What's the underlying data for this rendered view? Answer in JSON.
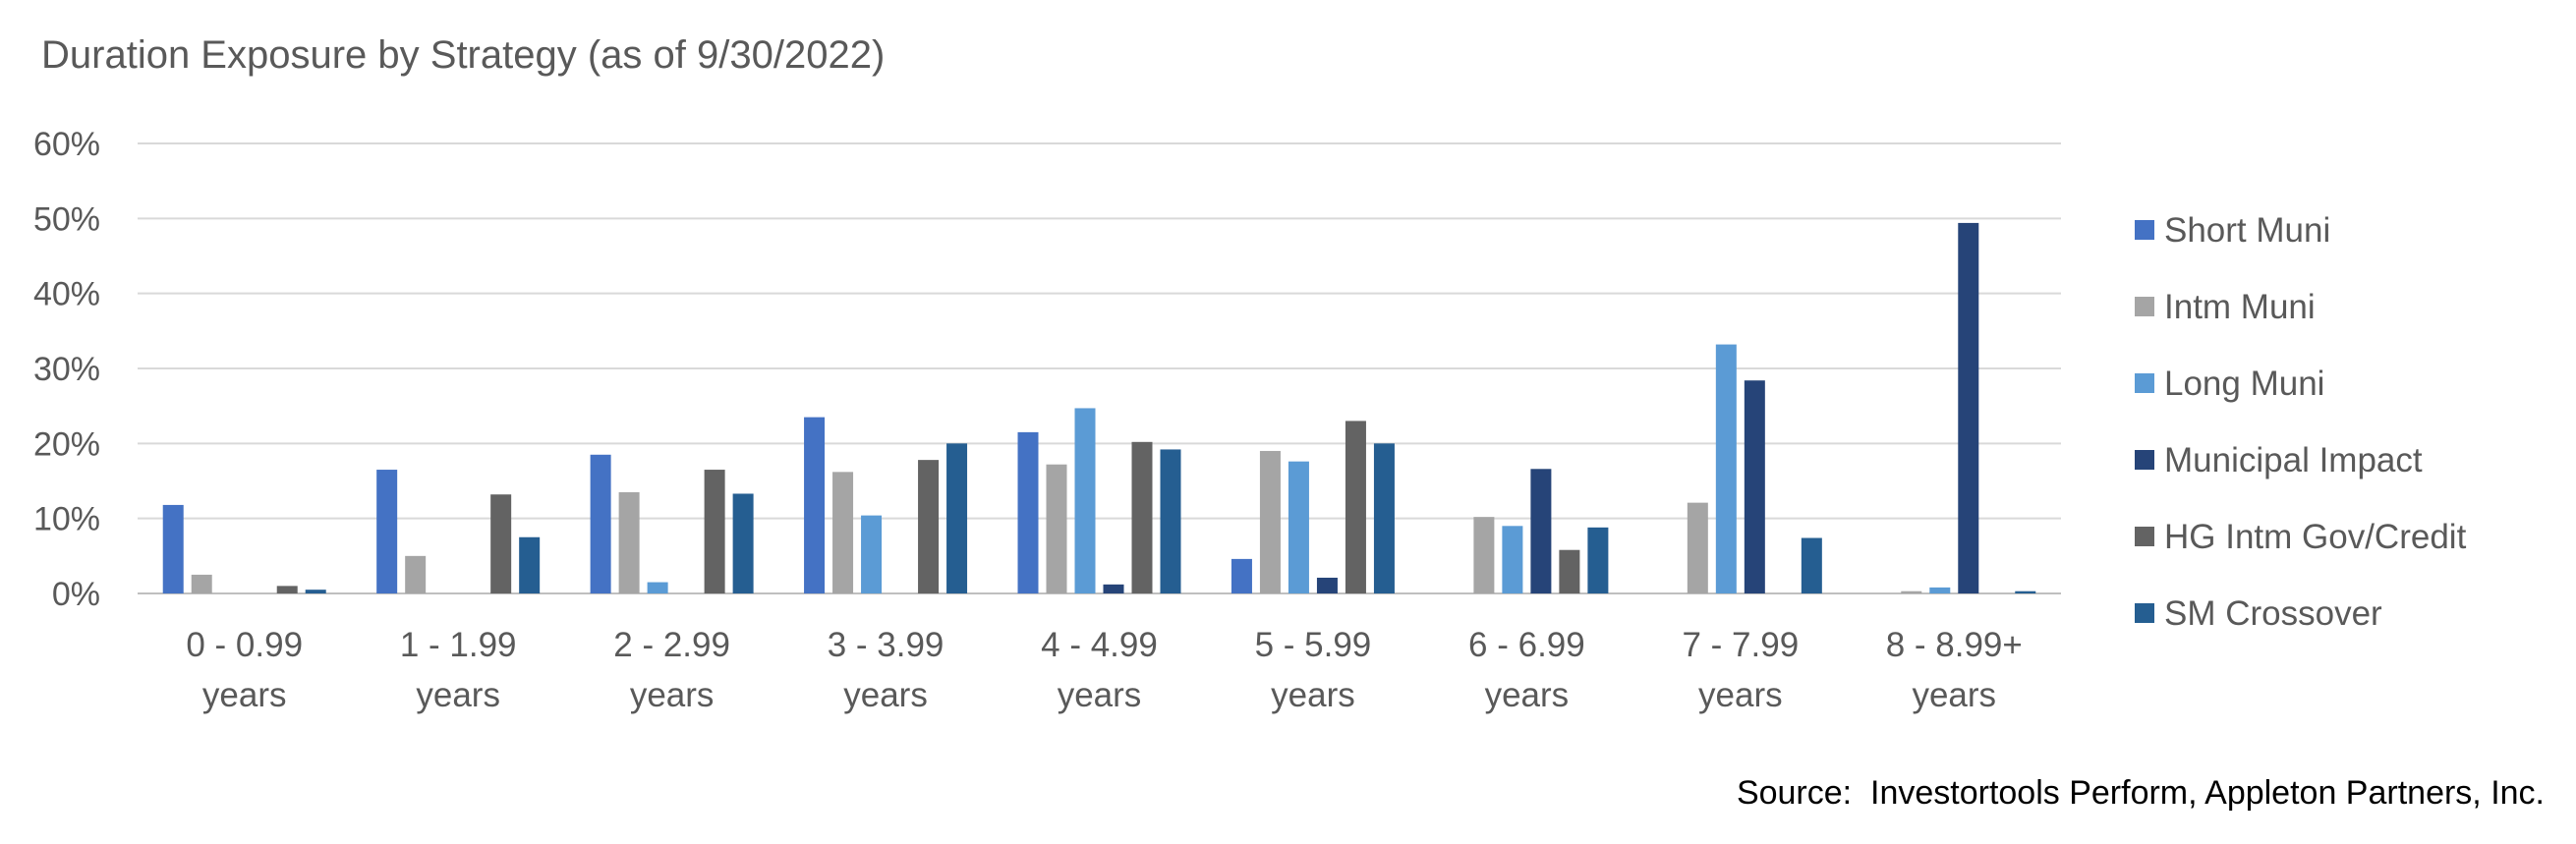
{
  "title": "Duration Exposure by Strategy (as of 9/30/2022)",
  "source": "Source:  Investortools Perform, Appleton Partners, Inc.",
  "chart_data": {
    "type": "bar",
    "title": "Duration Exposure by Strategy (as of 9/30/2022)",
    "xlabel": "",
    "ylabel": "",
    "ylim": [
      0,
      60
    ],
    "yticks": [
      "0%",
      "10%",
      "20%",
      "30%",
      "40%",
      "50%",
      "60%"
    ],
    "grid": true,
    "legend_position": "right",
    "categories": [
      [
        "0 - 0.99",
        "years"
      ],
      [
        "1 - 1.99",
        "years"
      ],
      [
        "2 - 2.99",
        "years"
      ],
      [
        "3 - 3.99",
        "years"
      ],
      [
        "4 - 4.99",
        "years"
      ],
      [
        "5 - 5.99",
        "years"
      ],
      [
        "6 - 6.99",
        "years"
      ],
      [
        "7 - 7.99",
        "years"
      ],
      [
        "8 - 8.99+",
        "years"
      ]
    ],
    "series": [
      {
        "name": "Short Muni",
        "color": "#4472C4",
        "values": [
          11.8,
          16.5,
          18.5,
          23.5,
          21.5,
          4.6,
          0,
          0,
          0
        ]
      },
      {
        "name": "Intm Muni",
        "color": "#A5A5A5",
        "values": [
          2.5,
          5.0,
          13.5,
          16.2,
          17.2,
          19.0,
          10.2,
          12.1,
          0.3
        ]
      },
      {
        "name": "Long Muni",
        "color": "#5B9BD5",
        "values": [
          0,
          0,
          1.5,
          10.4,
          24.7,
          17.6,
          9.0,
          33.2,
          0.8
        ]
      },
      {
        "name": "Municipal Impact",
        "color": "#264478",
        "values": [
          0,
          0,
          0,
          0,
          1.2,
          2.1,
          16.6,
          28.4,
          49.4
        ]
      },
      {
        "name": "HG Intm Gov/Credit",
        "color": "#636363",
        "values": [
          1.0,
          13.2,
          16.5,
          17.8,
          20.2,
          23.0,
          5.8,
          0,
          0
        ]
      },
      {
        "name": "SM Crossover",
        "color": "#255E91",
        "values": [
          0.5,
          7.5,
          13.3,
          20.0,
          19.2,
          20.0,
          8.8,
          7.4,
          0.3
        ]
      }
    ]
  }
}
